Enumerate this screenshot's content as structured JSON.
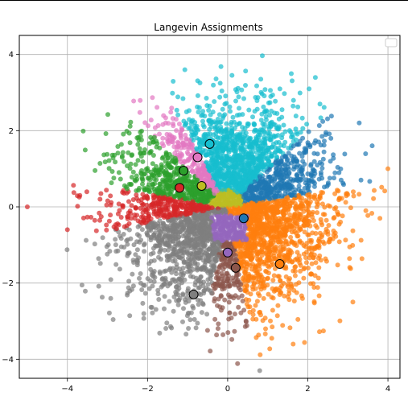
{
  "chart_data": {
    "type": "scatter",
    "title": "Langevin Assignments",
    "xlabel": "",
    "ylabel": "",
    "xlim": [
      -5.2,
      4.3
    ],
    "ylim": [
      -4.5,
      4.5
    ],
    "xticks": [
      -4,
      -2,
      0,
      2,
      4
    ],
    "yticks": [
      -4,
      -2,
      0,
      2,
      4
    ],
    "xtick_labels": [
      "−4",
      "−2",
      "0",
      "2",
      "4"
    ],
    "ytick_labels": [
      "−4",
      "−2",
      "0",
      "2",
      "4"
    ],
    "grid": true,
    "legend": "top-right (empty)",
    "clusters": [
      {
        "color": "#1f77b4",
        "center": [
          0.4,
          -0.3
        ],
        "region_desc": "thin blue wedge to upper right"
      },
      {
        "color": "#ff7f0e",
        "center": [
          1.3,
          -1.5
        ],
        "region_desc": "right sector"
      },
      {
        "color": "#2ca02c",
        "center": [
          -1.1,
          0.95
        ],
        "region_desc": "upper left"
      },
      {
        "color": "#d62728",
        "center": [
          -1.2,
          0.5
        ],
        "region_desc": "left"
      },
      {
        "color": "#9467bd",
        "center": [
          0.0,
          -1.2
        ],
        "region_desc": "small central"
      },
      {
        "color": "#8c564b",
        "center": [
          0.2,
          -1.6
        ],
        "region_desc": "lower center wedge"
      },
      {
        "color": "#e377c2",
        "center": [
          -0.75,
          1.3
        ],
        "region_desc": "upper left thin band"
      },
      {
        "color": "#7f7f7f",
        "center": [
          -0.85,
          -2.3
        ],
        "region_desc": "bottom"
      },
      {
        "color": "#bcbd22",
        "center": [
          -0.65,
          0.55
        ],
        "region_desc": "central small"
      },
      {
        "color": "#17becf",
        "center": [
          -0.45,
          1.65
        ],
        "region_desc": "top"
      }
    ],
    "outliers": [
      {
        "x": -5.0,
        "y": 0.0,
        "color": "#d62728"
      },
      {
        "x": -4.0,
        "y": -0.6,
        "color": "#d62728"
      },
      {
        "x": 0.8,
        "y": -4.3,
        "color": "#7f7f7f"
      },
      {
        "x": 4.0,
        "y": 1.0,
        "color": "#ff7f0e"
      },
      {
        "x": 3.8,
        "y": -0.3,
        "color": "#ff7f0e"
      }
    ]
  }
}
